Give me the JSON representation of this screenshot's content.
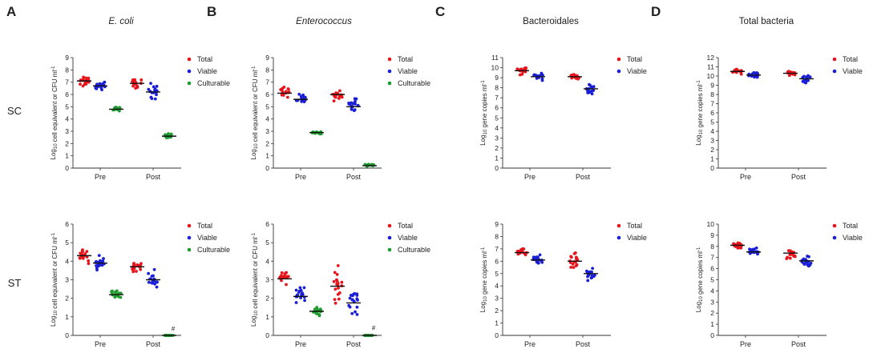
{
  "figure": {
    "row_labels": [
      "SC",
      "ST"
    ]
  },
  "chart_data": [
    {
      "id": "A-SC",
      "panel": "A",
      "type": "scatter",
      "title": "E. coli",
      "title_italic": true,
      "ylabel": "Log10 cell equivalent or CFU ml-1",
      "ylim": [
        0,
        9
      ],
      "yticks": [
        0,
        1,
        2,
        3,
        4,
        5,
        6,
        7,
        8,
        9
      ],
      "categories": [
        "Pre",
        "Post"
      ],
      "legend": [
        "Total",
        "Viable",
        "Culturable"
      ],
      "series": [
        {
          "name": "Total",
          "color": "#e8141c",
          "medians": [
            7.1,
            6.9
          ],
          "spread": [
            0.55,
            0.55
          ]
        },
        {
          "name": "Viable",
          "color": "#1a1fd6",
          "medians": [
            6.7,
            6.2
          ],
          "spread": [
            0.5,
            0.85
          ]
        },
        {
          "name": "Culturable",
          "color": "#1f9a2e",
          "medians": [
            4.8,
            2.6
          ],
          "spread": [
            0.25,
            0.35
          ]
        }
      ]
    },
    {
      "id": "B-SC",
      "panel": "B",
      "type": "scatter",
      "title": "Enterococcus",
      "title_italic": true,
      "ylabel": "Log10 cell equivalent or CFU ml-1",
      "ylim": [
        0,
        9
      ],
      "yticks": [
        0,
        1,
        2,
        3,
        4,
        5,
        6,
        7,
        8,
        9
      ],
      "categories": [
        "Pre",
        "Post"
      ],
      "legend": [
        "Total",
        "Viable",
        "Culturable"
      ],
      "series": [
        {
          "name": "Total",
          "color": "#e8141c",
          "medians": [
            6.1,
            6.0
          ],
          "spread": [
            0.65,
            0.65
          ]
        },
        {
          "name": "Viable",
          "color": "#1a1fd6",
          "medians": [
            5.6,
            5.0
          ],
          "spread": [
            0.55,
            1.0
          ]
        },
        {
          "name": "Culturable",
          "color": "#1f9a2e",
          "medians": [
            2.9,
            0.2
          ],
          "spread": [
            0.25,
            0.35
          ]
        }
      ]
    },
    {
      "id": "C-SC",
      "panel": "C",
      "type": "scatter",
      "title": "Bacteroidales",
      "title_italic": false,
      "ylabel": "Log10 gene copies ml-1",
      "ylim": [
        0,
        11
      ],
      "yticks": [
        0,
        1,
        2,
        3,
        4,
        5,
        6,
        7,
        8,
        9,
        10,
        11
      ],
      "categories": [
        "Pre",
        "Post"
      ],
      "legend": [
        "Total",
        "Viable"
      ],
      "series": [
        {
          "name": "Total",
          "color": "#e8141c",
          "medians": [
            9.7,
            9.1
          ],
          "spread": [
            0.55,
            0.45
          ]
        },
        {
          "name": "Viable",
          "color": "#1a1fd6",
          "medians": [
            9.1,
            7.9
          ],
          "spread": [
            0.5,
            0.75
          ]
        }
      ]
    },
    {
      "id": "D-SC",
      "panel": "D",
      "type": "scatter",
      "title": "Total bacteria",
      "title_italic": false,
      "ylabel": "Log10 gene copies ml-1",
      "ylim": [
        0,
        12
      ],
      "yticks": [
        0,
        1,
        2,
        3,
        4,
        5,
        6,
        7,
        8,
        9,
        10,
        11,
        12
      ],
      "categories": [
        "Pre",
        "Post"
      ],
      "legend": [
        "Total",
        "Viable"
      ],
      "series": [
        {
          "name": "Total",
          "color": "#e8141c",
          "medians": [
            10.5,
            10.3
          ],
          "spread": [
            0.35,
            0.35
          ]
        },
        {
          "name": "Viable",
          "color": "#1a1fd6",
          "medians": [
            10.1,
            9.7
          ],
          "spread": [
            0.5,
            0.6
          ]
        }
      ]
    },
    {
      "id": "A-ST",
      "panel": "A",
      "type": "scatter",
      "title": "",
      "ylabel": "Log10 cell equivalent or CFU ml-1",
      "ylim": [
        0,
        6
      ],
      "yticks": [
        0,
        1,
        2,
        3,
        4,
        5,
        6
      ],
      "categories": [
        "Pre",
        "Post"
      ],
      "legend": [
        "Total",
        "Viable",
        "Culturable"
      ],
      "annotation": {
        "text": "#",
        "category": "Post",
        "series": "Culturable",
        "value": 0.15
      },
      "series": [
        {
          "name": "Total",
          "color": "#e8141c",
          "medians": [
            4.3,
            3.7
          ],
          "spread": [
            0.5,
            0.55
          ]
        },
        {
          "name": "Viable",
          "color": "#1a1fd6",
          "medians": [
            3.9,
            3.0
          ],
          "spread": [
            0.55,
            0.65
          ]
        },
        {
          "name": "Culturable",
          "color": "#1f9a2e",
          "medians": [
            2.2,
            0.0
          ],
          "spread": [
            0.3,
            0.0
          ]
        }
      ]
    },
    {
      "id": "B-ST",
      "panel": "B",
      "type": "scatter",
      "title": "",
      "ylabel": "Log10 cell equivalent or CFU ml-1",
      "ylim": [
        0,
        6
      ],
      "yticks": [
        0,
        1,
        2,
        3,
        4,
        5,
        6
      ],
      "categories": [
        "Pre",
        "Post"
      ],
      "legend": [
        "Total",
        "Viable",
        "Culturable"
      ],
      "annotation": {
        "text": "#",
        "category": "Post",
        "series": "Culturable",
        "value": 0.2
      },
      "series": [
        {
          "name": "Total",
          "color": "#e8141c",
          "medians": [
            3.05,
            2.65
          ],
          "spread": [
            0.55,
            1.4
          ]
        },
        {
          "name": "Viable",
          "color": "#1a1fd6",
          "medians": [
            2.1,
            1.75
          ],
          "spread": [
            0.8,
            1.1
          ]
        },
        {
          "name": "Culturable",
          "color": "#1f9a2e",
          "medians": [
            1.3,
            0.0
          ],
          "spread": [
            0.35,
            0.0
          ]
        }
      ]
    },
    {
      "id": "C-ST",
      "panel": "C",
      "type": "scatter",
      "title": "",
      "ylabel": "Log10 gene copies ml-1",
      "ylim": [
        0,
        9
      ],
      "yticks": [
        0,
        1,
        2,
        3,
        4,
        5,
        6,
        7,
        8,
        9
      ],
      "categories": [
        "Pre",
        "Post"
      ],
      "legend": [
        "Total",
        "Viable"
      ],
      "series": [
        {
          "name": "Total",
          "color": "#e8141c",
          "medians": [
            6.7,
            6.0
          ],
          "spread": [
            0.45,
            0.95
          ]
        },
        {
          "name": "Viable",
          "color": "#1a1fd6",
          "medians": [
            6.1,
            5.0
          ],
          "spread": [
            0.5,
            0.9
          ]
        }
      ]
    },
    {
      "id": "D-ST",
      "panel": "D",
      "type": "scatter",
      "title": "",
      "ylabel": "Log10 gene copies ml-1",
      "ylim": [
        0,
        10
      ],
      "yticks": [
        0,
        1,
        2,
        3,
        4,
        5,
        6,
        7,
        8,
        9,
        10
      ],
      "categories": [
        "Pre",
        "Post"
      ],
      "legend": [
        "Total",
        "Viable"
      ],
      "series": [
        {
          "name": "Total",
          "color": "#e8141c",
          "medians": [
            8.1,
            7.4
          ],
          "spread": [
            0.35,
            0.75
          ]
        },
        {
          "name": "Viable",
          "color": "#1a1fd6",
          "medians": [
            7.5,
            6.7
          ],
          "spread": [
            0.6,
            0.75
          ]
        }
      ]
    }
  ]
}
